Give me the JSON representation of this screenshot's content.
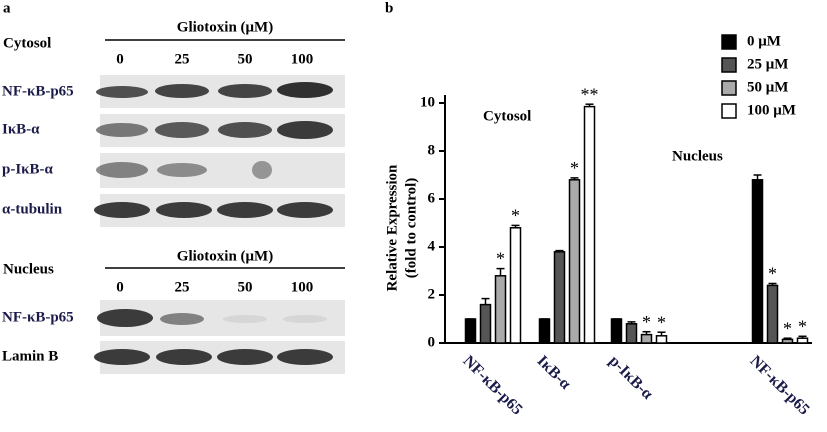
{
  "panel_a": {
    "label": "a",
    "cytosol": {
      "title": "Cytosol",
      "header": "Gliotoxin (μM)",
      "lanes": [
        "0",
        "25",
        "50",
        "100"
      ],
      "rows": [
        "NF-κB-p65",
        "IκB-α",
        "p-IκB-α",
        "α-tubulin"
      ]
    },
    "nucleus": {
      "title": "Nucleus",
      "header": "Gliotoxin (μM)",
      "lanes": [
        "0",
        "25",
        "50",
        "100"
      ],
      "rows": [
        "NF-κB-p65",
        "Lamin B"
      ]
    }
  },
  "chart_data": {
    "type": "bar",
    "panel_label": "b",
    "ylabel": [
      "Relative Expression",
      "(fold to control)"
    ],
    "annotations": [
      "Cytosol",
      "Nucleus"
    ],
    "categories": [
      "NF-κB-p65",
      "IκB-α",
      "p-IκB-α",
      "NF-κB-p65"
    ],
    "ylim": [
      0,
      10
    ],
    "yticks": [
      0,
      2,
      4,
      6,
      8,
      10
    ],
    "series": [
      {
        "name": "0 μM",
        "color": "#000000",
        "values": [
          1,
          1,
          1,
          6.8
        ],
        "errors": [
          0,
          0,
          0,
          0.2
        ]
      },
      {
        "name": "25 μM",
        "color": "#555555",
        "values": [
          1.6,
          3.8,
          0.8,
          2.4
        ],
        "errors": [
          0.25,
          0.05,
          0.08,
          0.08
        ],
        "significance": [
          null,
          null,
          null,
          "*"
        ]
      },
      {
        "name": "50 μM",
        "color": "#aaaaaa",
        "values": [
          2.8,
          6.8,
          0.35,
          0.15
        ],
        "errors": [
          0.3,
          0.08,
          0.12,
          0.05
        ],
        "significance": [
          "*",
          "*",
          "*",
          "*"
        ]
      },
      {
        "name": "100 μM",
        "color": "#ffffff",
        "values": [
          4.8,
          9.85,
          0.3,
          0.2
        ],
        "errors": [
          0.1,
          0.1,
          0.15,
          0.08
        ],
        "significance": [
          "*",
          "**",
          "*",
          "*"
        ]
      }
    ],
    "legend": "top-right"
  }
}
